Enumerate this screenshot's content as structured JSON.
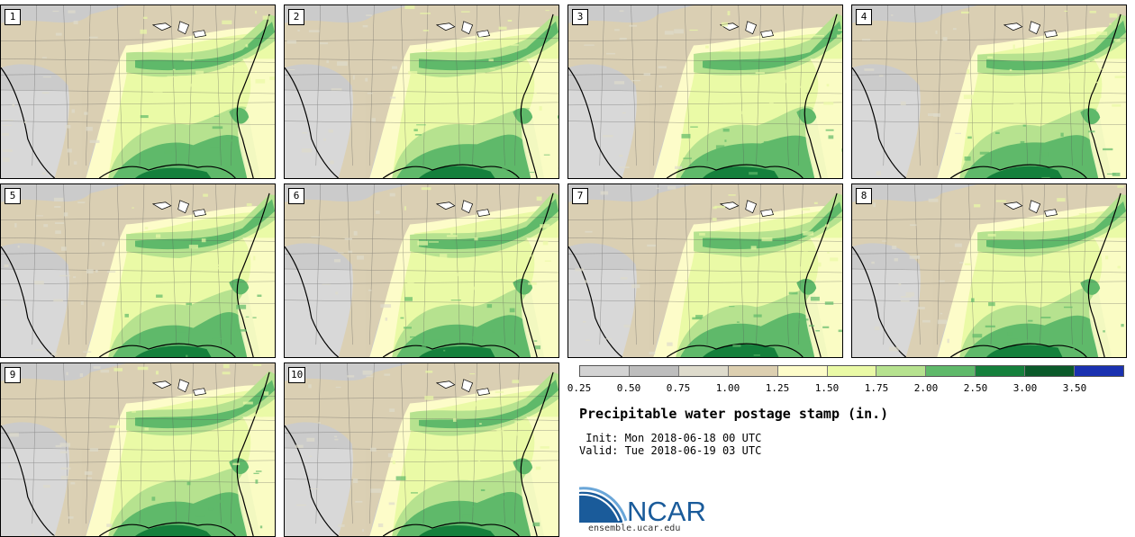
{
  "panels": [
    {
      "label": "1"
    },
    {
      "label": "2"
    },
    {
      "label": "3"
    },
    {
      "label": "4"
    },
    {
      "label": "5"
    },
    {
      "label": "6"
    },
    {
      "label": "7"
    },
    {
      "label": "8"
    },
    {
      "label": "9"
    },
    {
      "label": "10"
    }
  ],
  "legend": {
    "colors": [
      "#d3d3d3",
      "#bdbdbd",
      "#dedbcc",
      "#dccfb0",
      "#fdfcc9",
      "#eafaa6",
      "#b6e28f",
      "#5fb96a",
      "#15803c",
      "#0b5a2a",
      "#1a31b0"
    ],
    "ticks": [
      "0.25",
      "0.50",
      "0.75",
      "1.00",
      "1.25",
      "1.50",
      "1.75",
      "2.00",
      "2.50",
      "3.00",
      "3.50"
    ]
  },
  "title": "Precipitable water postage stamp (in.)",
  "init": " Init: Mon 2018-06-18 00 UTC",
  "valid": "Valid: Tue 2018-06-19 03 UTC",
  "logo": {
    "text": "NCAR",
    "url": "ensemble.ucar.edu"
  }
}
